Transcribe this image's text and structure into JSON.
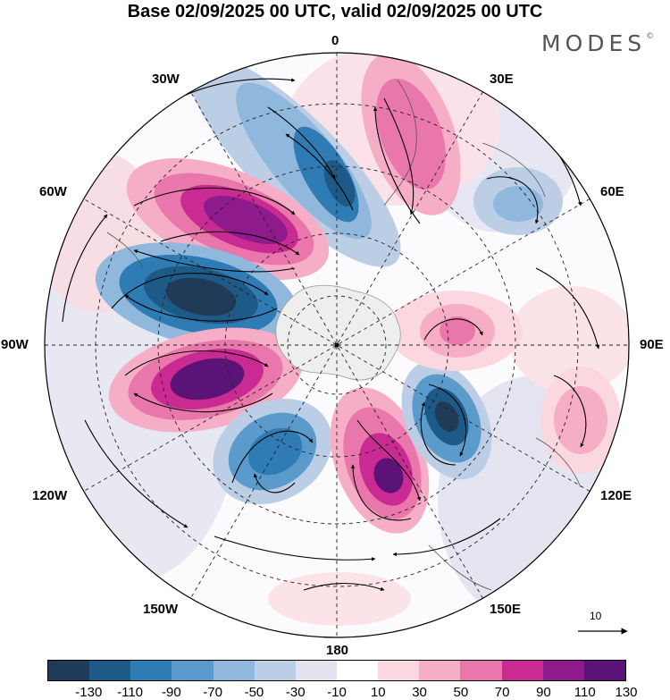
{
  "title": "Base 02/09/2025 00 UTC, valid 02/09/2025 00 UTC",
  "brand": {
    "name": "MODES",
    "mark": "©"
  },
  "longitude_labels": {
    "n0": "0",
    "n30e": "30E",
    "n60e": "60E",
    "n90e": "90E",
    "n120e": "120E",
    "n150e": "150E",
    "n180": "180",
    "n150w": "150W",
    "n120w": "120W",
    "n90w": "90W",
    "n60w": "60W",
    "n30w": "30W"
  },
  "reference_vector": {
    "value": "10"
  },
  "colorbar": {
    "colors": [
      "#1f3b57",
      "#1e5a87",
      "#2f7bb3",
      "#5a9bcb",
      "#8fb8dc",
      "#bccde6",
      "#e3e3f0",
      "#ffffff",
      "#fbd7df",
      "#f5aec5",
      "#ea77ab",
      "#c92b92",
      "#8e1a8c",
      "#5c1377"
    ],
    "ticks": [
      "-130",
      "-110",
      "-90",
      "-70",
      "-50",
      "-30",
      "-10",
      "10",
      "30",
      "50",
      "70",
      "90",
      "110",
      "130"
    ]
  }
}
